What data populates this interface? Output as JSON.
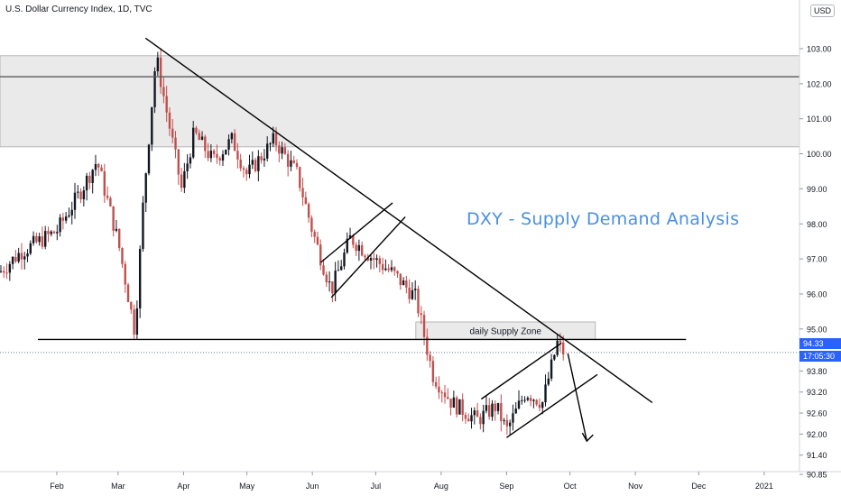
{
  "chart_title": "U.S. Dollar Currency Index, 1D, TVC",
  "currency_button": "USD",
  "headline": "DXY - Supply Demand Analysis",
  "colors": {
    "up": "#131722",
    "down": "#c0504d",
    "lines": "#000000",
    "zone": "#e6e6e6",
    "headline": "#4a90e2",
    "price_tag": "#2962ff"
  },
  "chart_data": {
    "type": "candlestick",
    "y_axis": {
      "scale": "linear",
      "range": [
        90.6,
        104.0
      ],
      "ticks": [
        "103.00",
        "102.00",
        "101.00",
        "100.00",
        "99.00",
        "98.00",
        "97.00",
        "96.00",
        "95.00",
        "93.80",
        "93.20",
        "92.60",
        "92.00",
        "91.40",
        "90.85"
      ],
      "tick_values": [
        103.0,
        102.0,
        101.0,
        100.0,
        99.0,
        98.0,
        97.0,
        96.0,
        95.0,
        93.8,
        93.2,
        92.6,
        92.0,
        91.4,
        90.85
      ]
    },
    "x_axis": {
      "labels": [
        "Feb",
        "Mar",
        "Apr",
        "May",
        "Jun",
        "Jul",
        "Aug",
        "Sep",
        "Oct",
        "Nov",
        "Dec",
        "2021"
      ],
      "label_dates": [
        "2020-02-01",
        "2020-03-01",
        "2020-04-01",
        "2020-05-01",
        "2020-06-01",
        "2020-07-01",
        "2020-08-01",
        "2020-09-01",
        "2020-10-01",
        "2020-11-01",
        "2020-12-01",
        "2021-01-01"
      ]
    },
    "last_price": "94.33",
    "countdown": "17:05:30",
    "price_path": [
      {
        "date": "2020-01-01",
        "close": 96.4
      },
      {
        "date": "2020-01-15",
        "close": 97.2
      },
      {
        "date": "2020-02-01",
        "close": 97.8
      },
      {
        "date": "2020-02-12",
        "close": 98.9
      },
      {
        "date": "2020-02-20",
        "close": 99.8
      },
      {
        "date": "2020-03-01",
        "close": 97.5
      },
      {
        "date": "2020-03-09",
        "close": 94.9
      },
      {
        "date": "2020-03-13",
        "close": 98.7
      },
      {
        "date": "2020-03-19",
        "close": 102.8
      },
      {
        "date": "2020-03-24",
        "close": 101.2
      },
      {
        "date": "2020-03-31",
        "close": 99.0
      },
      {
        "date": "2020-04-06",
        "close": 100.6
      },
      {
        "date": "2020-04-15",
        "close": 99.8
      },
      {
        "date": "2020-04-24",
        "close": 100.4
      },
      {
        "date": "2020-05-01",
        "close": 99.4
      },
      {
        "date": "2020-05-14",
        "close": 100.4
      },
      {
        "date": "2020-05-25",
        "close": 99.4
      },
      {
        "date": "2020-06-01",
        "close": 97.8
      },
      {
        "date": "2020-06-10",
        "close": 96.1
      },
      {
        "date": "2020-06-19",
        "close": 97.6
      },
      {
        "date": "2020-06-30",
        "close": 97.0
      },
      {
        "date": "2020-07-09",
        "close": 96.6
      },
      {
        "date": "2020-07-20",
        "close": 95.9
      },
      {
        "date": "2020-07-28",
        "close": 93.7
      },
      {
        "date": "2020-08-06",
        "close": 92.9
      },
      {
        "date": "2020-08-18",
        "close": 92.4
      },
      {
        "date": "2020-08-27",
        "close": 92.8
      },
      {
        "date": "2020-09-01",
        "close": 92.1
      },
      {
        "date": "2020-09-10",
        "close": 93.2
      },
      {
        "date": "2020-09-18",
        "close": 92.9
      },
      {
        "date": "2020-09-25",
        "close": 94.6
      },
      {
        "date": "2020-09-28",
        "close": 94.33
      }
    ],
    "annotations": [
      {
        "type": "zone",
        "label": "",
        "price_from": 100.2,
        "price_to": 102.8,
        "date_from": "2019-12-31",
        "date_to": "2021-01-31"
      },
      {
        "type": "hline",
        "price": 102.2,
        "date_from": "2019-12-31",
        "date_to": "2021-01-31"
      },
      {
        "type": "zone",
        "label": "daily Supply Zone",
        "price_from": 94.7,
        "price_to": 95.2,
        "date_from": "2020-07-20",
        "date_to": "2020-10-13"
      },
      {
        "type": "hline",
        "price": 94.7,
        "date_from": "2020-01-23",
        "date_to": "2020-11-25"
      },
      {
        "type": "trendline",
        "points": [
          {
            "date": "2020-03-14",
            "price": 103.3
          },
          {
            "date": "2020-11-09",
            "price": 92.9
          }
        ]
      },
      {
        "type": "trendline",
        "points": [
          {
            "date": "2020-06-10",
            "price": 95.9
          },
          {
            "date": "2020-07-15",
            "price": 98.2
          }
        ]
      },
      {
        "type": "trendline",
        "points": [
          {
            "date": "2020-06-05",
            "price": 96.9
          },
          {
            "date": "2020-07-09",
            "price": 98.6
          }
        ]
      },
      {
        "type": "trendline",
        "points": [
          {
            "date": "2020-09-01",
            "price": 91.9
          },
          {
            "date": "2020-10-14",
            "price": 93.7
          }
        ]
      },
      {
        "type": "trendline",
        "points": [
          {
            "date": "2020-08-20",
            "price": 93.0
          },
          {
            "date": "2020-09-27",
            "price": 94.6
          }
        ]
      },
      {
        "type": "arrow",
        "points": [
          {
            "date": "2020-09-30",
            "price": 94.3
          },
          {
            "date": "2020-10-09",
            "price": 91.8
          }
        ]
      }
    ]
  }
}
